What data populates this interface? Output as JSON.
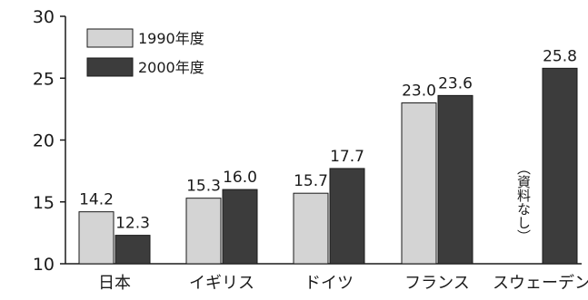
{
  "chart_data": {
    "type": "bar",
    "title": "",
    "xlabel": "",
    "ylabel": "",
    "ylim": [
      10,
      30
    ],
    "yticks": [
      "10",
      "15",
      "20",
      "25",
      "30"
    ],
    "grid": false,
    "legend_position": "top-left",
    "categories": [
      "日本",
      "イギリス",
      "ドイツ",
      "フランス",
      "スウェーデン"
    ],
    "series": [
      {
        "name": "1990年度",
        "color": "#d4d4d4",
        "values": [
          14.2,
          15.3,
          15.7,
          23.0,
          null
        ],
        "labels": [
          "14.2",
          "15.3",
          "15.7",
          "23.0",
          ""
        ]
      },
      {
        "name": "2000年度",
        "color": "#3c3c3c",
        "values": [
          12.3,
          16.0,
          17.7,
          23.6,
          25.8
        ],
        "labels": [
          "12.3",
          "16.0",
          "17.7",
          "23.6",
          "25.8"
        ]
      }
    ],
    "annotations": [
      {
        "category": "スウェーデン",
        "series": "1990年度",
        "text": "（資料なし）"
      }
    ]
  }
}
